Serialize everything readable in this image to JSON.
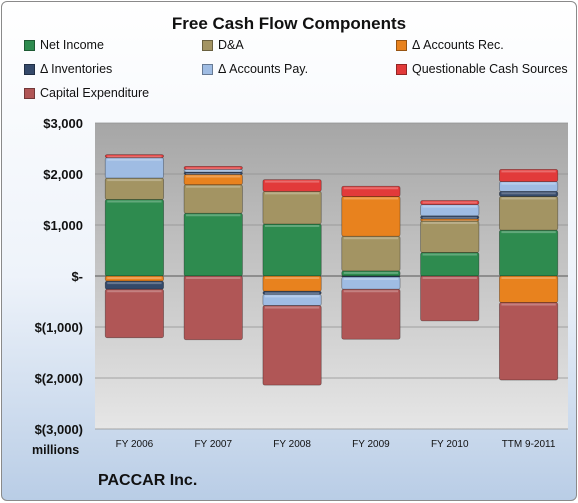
{
  "chart_data": {
    "type": "bar",
    "stacked": true,
    "title": "Free Cash Flow Components",
    "ylabel": "millions",
    "ylim": [
      -3000,
      3000
    ],
    "yticks": [
      3000,
      2000,
      1000,
      0,
      -1000,
      -2000,
      -3000
    ],
    "ytick_labels": [
      "$3,000",
      "$2,000",
      "$1,000",
      "$-",
      "$(1,000)",
      "$(2,000)",
      "$(3,000)"
    ],
    "categories": [
      "FY 2006",
      "FY 2007",
      "FY 2008",
      "FY 2009",
      "FY 2010",
      "TTM 9-2011"
    ],
    "legend_position": "top",
    "grid": true,
    "series": [
      {
        "name": "Net Income",
        "color": "#2e8b4f",
        "values": [
          1500,
          1230,
          1020,
          100,
          460,
          900
        ]
      },
      {
        "name": "D&A",
        "color": "#a39463",
        "values": [
          420,
          560,
          640,
          680,
          620,
          660
        ]
      },
      {
        "name": "Δ Accounts Rec.",
        "color": "#e8821e",
        "values": [
          -100,
          200,
          -300,
          780,
          40,
          -520
        ]
      },
      {
        "name": "Δ Inventories",
        "color": "#34496a",
        "values": [
          -160,
          50,
          -60,
          -20,
          60,
          100
        ]
      },
      {
        "name": "Δ Accounts Pay.",
        "color": "#9fbce3",
        "values": [
          400,
          50,
          -220,
          -240,
          220,
          190
        ]
      },
      {
        "name": "Questionable Cash Sources",
        "color": "#e23a3a",
        "values": [
          60,
          60,
          230,
          200,
          80,
          240
        ]
      },
      {
        "name": "Capital Expenditure",
        "color": "#b05656",
        "values": [
          -950,
          -1250,
          -1560,
          -980,
          -880,
          -1520
        ]
      }
    ]
  },
  "footer": "PACCAR Inc.",
  "title_text": "Free Cash Flow Components",
  "y_unit_label": "millions"
}
